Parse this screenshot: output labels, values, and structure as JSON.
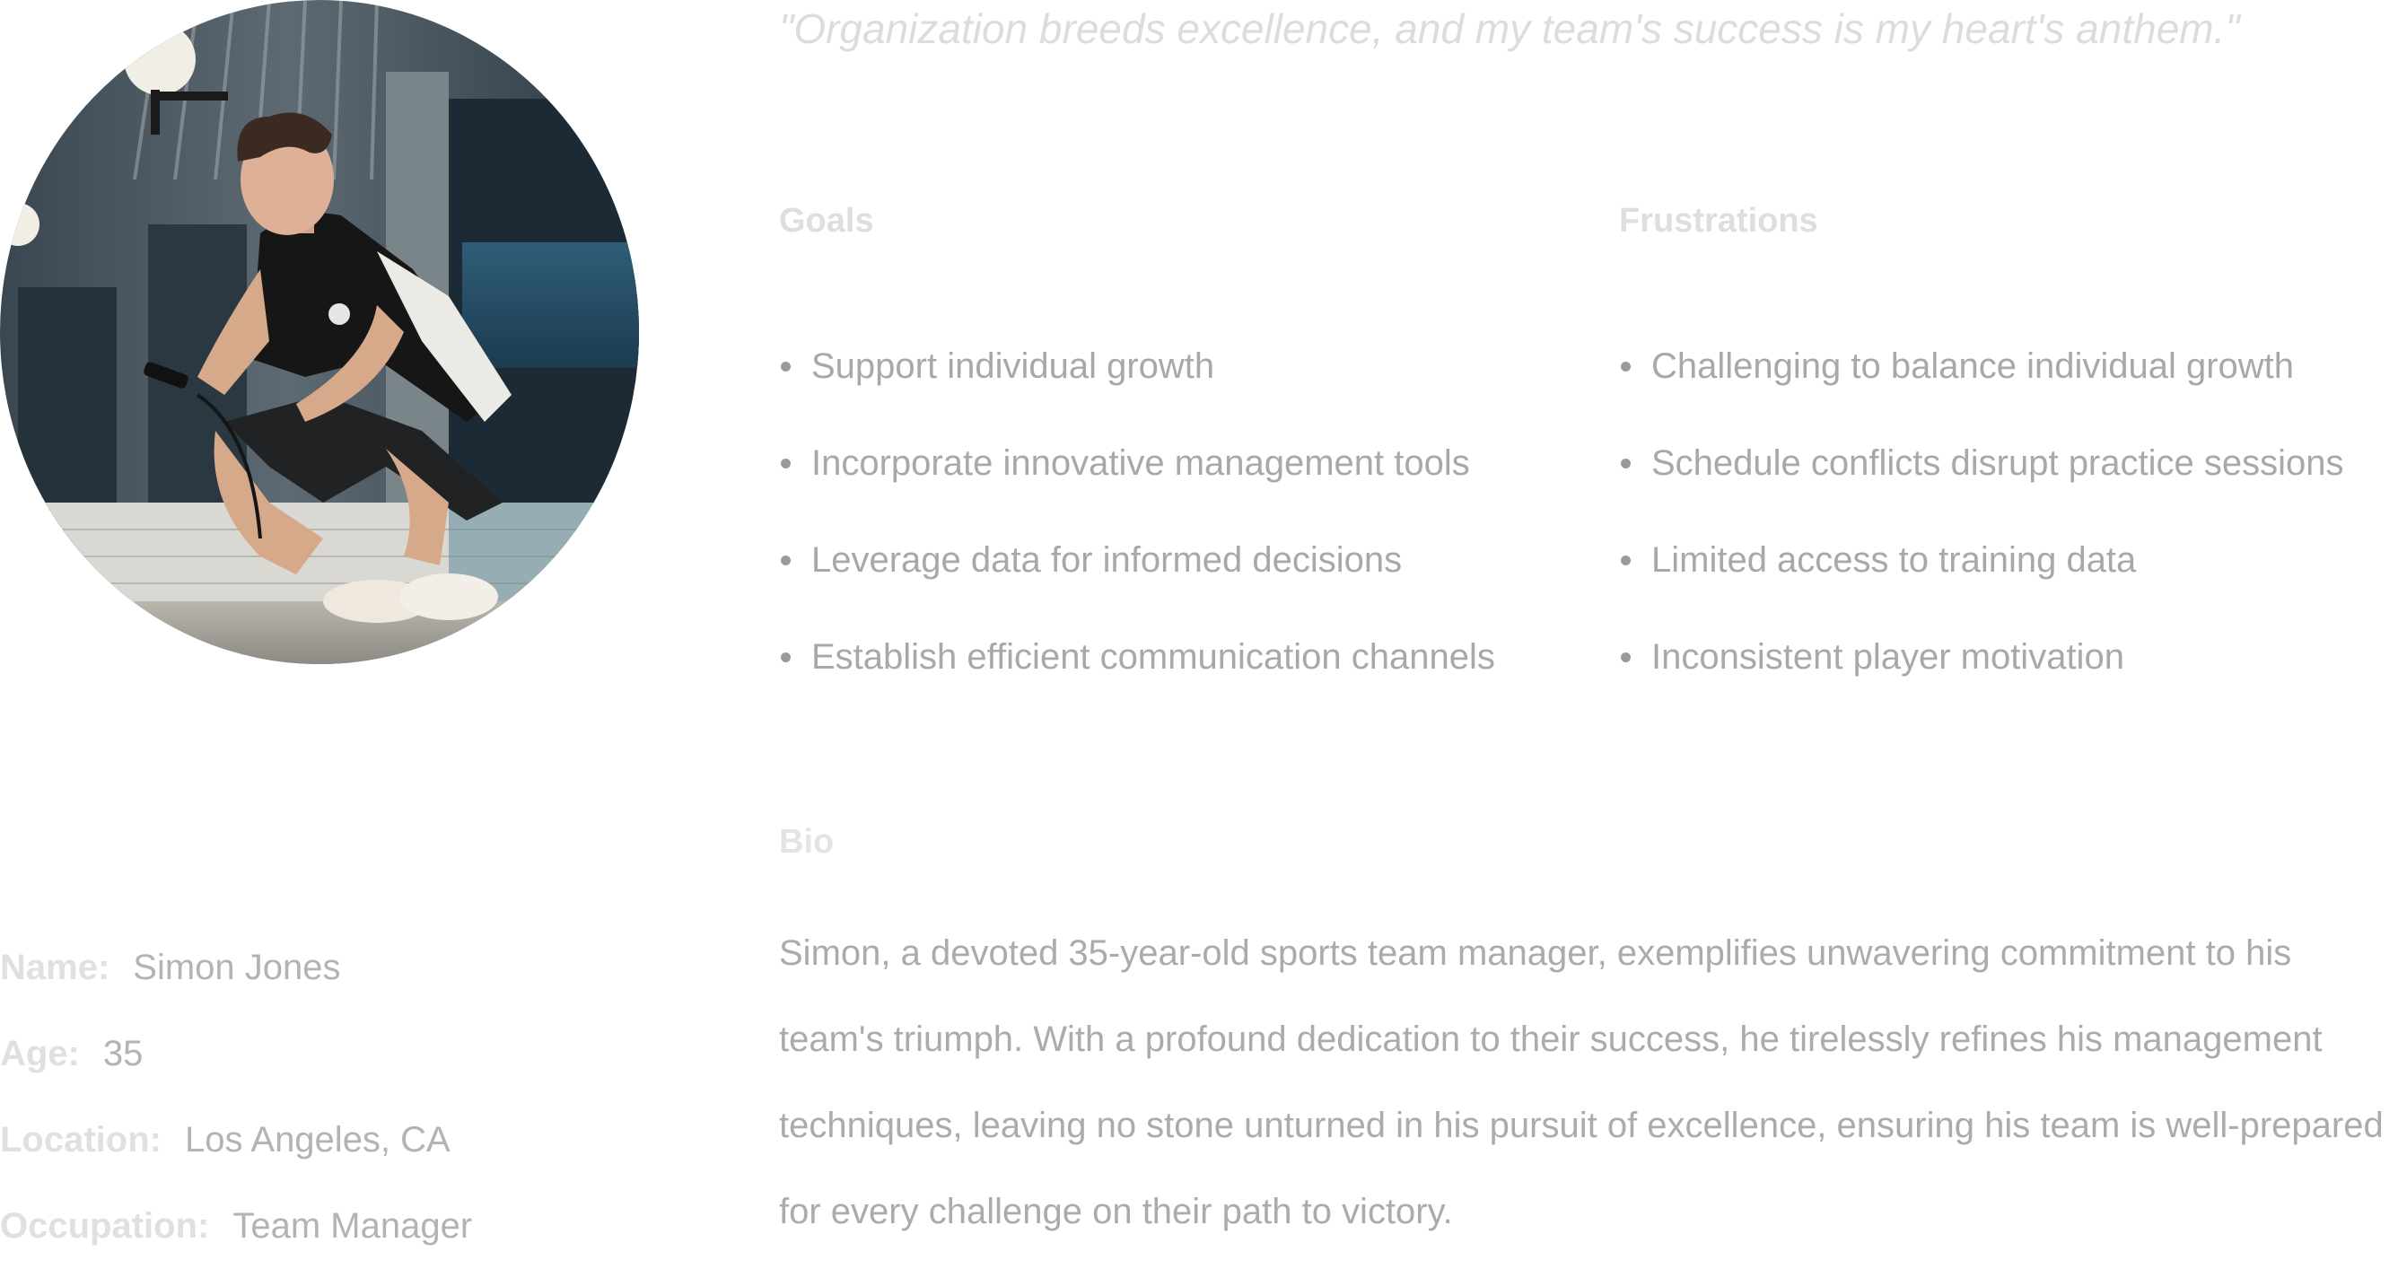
{
  "quote": "\"Organization breeds excellence, and my team's success is my heart's anthem.\"",
  "portrait": {
    "icon": "person-photo-icon"
  },
  "info": [
    {
      "label": "Name:",
      "value": "Simon Jones"
    },
    {
      "label": "Age:",
      "value": "35"
    },
    {
      "label": "Location:",
      "value": "Los Angeles, CA"
    },
    {
      "label": "Occupation:",
      "value": "Team Manager"
    }
  ],
  "goals": {
    "title": "Goals",
    "items": [
      "Support individual growth",
      "Incorporate innovative management tools",
      "Leverage data for informed decisions",
      "Establish efficient communication channels"
    ]
  },
  "frustrations": {
    "title": "Frustrations",
    "items": [
      "Challenging to balance individual growth",
      "Schedule conflicts disrupt practice sessions",
      "Limited access to training data",
      "Inconsistent player motivation"
    ]
  },
  "bio": {
    "title": "Bio",
    "text": "Simon, a devoted 35-year-old sports team manager, exemplifies unwavering commitment to his team's triumph. With a profound dedication to their success, he tirelessly refines his management techniques, leaving no stone unturned in his pursuit of excellence, ensuring his team is well-prepared for every challenge on their path to victory."
  },
  "colors": {
    "label": "#e0e0e0",
    "value": "#b3b3b3",
    "quote": "#dcdcdc",
    "body": "#a8a8a8"
  }
}
